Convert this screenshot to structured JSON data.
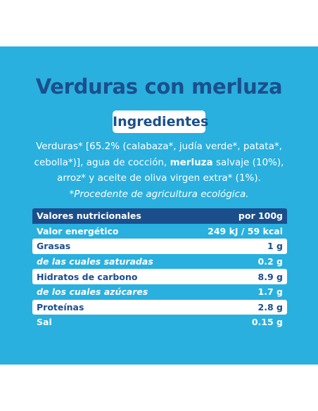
{
  "title": "Verduras con merluza",
  "ingredients_heading": "Ingredientes",
  "ingredients": {
    "part1": "Verduras* [65.2% (calabaza*, judía verde*, patata*, cebolla*)], agua de cocción, ",
    "bold": "merluza",
    "part2": " salvaje (10%), arroz* y aceite de oliva virgen extra* (1%).",
    "note": "*Procedente de agricultura ecológica."
  },
  "nutrition": {
    "header_label": "Valores nutricionales",
    "header_value": "por 100g",
    "rows": [
      {
        "label": "Valor energético",
        "value": "249 kJ / 59 kcal"
      },
      {
        "label": "Grasas",
        "value": "1 g"
      },
      {
        "label": "de las cuales saturadas",
        "value": "0.2 g"
      },
      {
        "label": "Hidratos de carbono",
        "value": "8.9 g"
      },
      {
        "label": "de los cuales azúcares",
        "value": "1.7 g"
      },
      {
        "label": "Proteínas",
        "value": "2.8 g"
      },
      {
        "label": "Sal",
        "value": "0.15 g"
      }
    ]
  },
  "colors": {
    "background_panel": "#29b0df",
    "navy": "#1b4f8c",
    "white": "#ffffff"
  }
}
